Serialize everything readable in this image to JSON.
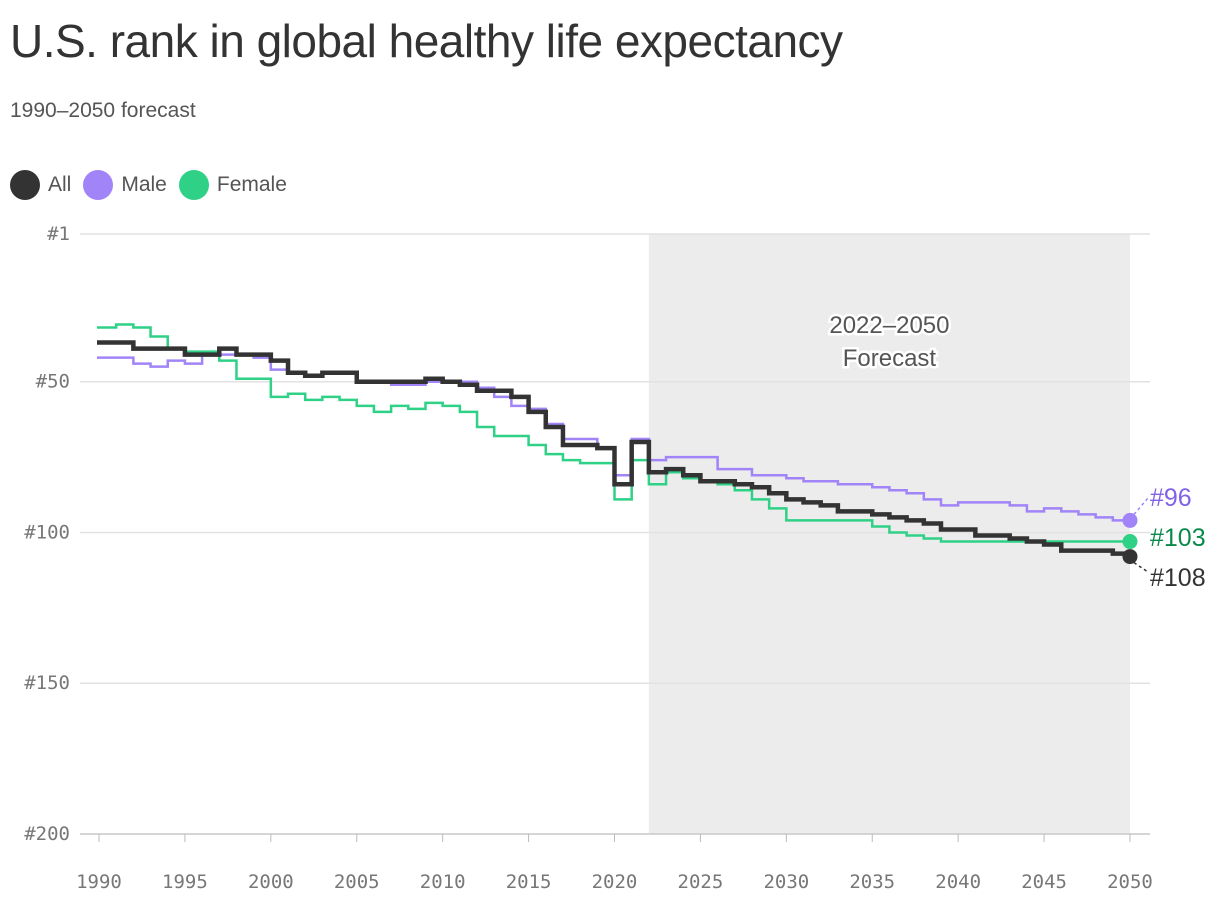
{
  "title": "U.S. rank in global healthy life expectancy",
  "subtitle": "1990–2050 forecast",
  "chart_data": {
    "type": "line",
    "step": true,
    "title": "U.S. rank in global healthy life expectancy",
    "subtitle": "1990–2050 forecast",
    "x": [
      1990,
      1991,
      1992,
      1993,
      1994,
      1995,
      1996,
      1997,
      1998,
      1999,
      2000,
      2001,
      2002,
      2003,
      2004,
      2005,
      2006,
      2007,
      2008,
      2009,
      2010,
      2011,
      2012,
      2013,
      2014,
      2015,
      2016,
      2017,
      2018,
      2019,
      2020,
      2021,
      2022,
      2023,
      2024,
      2025,
      2026,
      2027,
      2028,
      2029,
      2030,
      2031,
      2032,
      2033,
      2034,
      2035,
      2036,
      2037,
      2038,
      2039,
      2040,
      2041,
      2042,
      2043,
      2044,
      2045,
      2046,
      2047,
      2048,
      2049,
      2050
    ],
    "series": [
      {
        "name": "Female",
        "color": "#2fd186",
        "values": [
          32,
          31,
          32,
          35,
          39,
          40,
          40,
          43,
          49,
          49,
          55,
          54,
          56,
          55,
          56,
          58,
          60,
          58,
          59,
          57,
          58,
          60,
          65,
          68,
          68,
          71,
          74,
          76,
          77,
          77,
          89,
          76,
          84,
          80,
          82,
          83,
          84,
          86,
          89,
          92,
          96,
          96,
          96,
          96,
          96,
          98,
          100,
          101,
          102,
          103,
          103,
          103,
          103,
          103,
          103,
          103,
          103,
          103,
          103,
          103,
          103
        ],
        "end_label": "#103",
        "label_color": "#0a8a4a"
      },
      {
        "name": "Male",
        "color": "#a084f8",
        "values": [
          42,
          42,
          44,
          45,
          43,
          44,
          41,
          41,
          41,
          42,
          46,
          47,
          48,
          47,
          47,
          50,
          50,
          51,
          51,
          50,
          50,
          50,
          52,
          55,
          58,
          59,
          64,
          69,
          69,
          72,
          81,
          69,
          76,
          75,
          75,
          75,
          79,
          79,
          81,
          81,
          82,
          83,
          83,
          84,
          84,
          85,
          86,
          87,
          89,
          91,
          90,
          90,
          90,
          91,
          93,
          92,
          93,
          94,
          95,
          96,
          96
        ],
        "end_label": "#96",
        "label_color": "#8062e8"
      },
      {
        "name": "All",
        "color": "#333333",
        "values": [
          37,
          37,
          39,
          39,
          39,
          41,
          41,
          39,
          41,
          41,
          43,
          47,
          48,
          47,
          47,
          50,
          50,
          50,
          50,
          49,
          50,
          51,
          53,
          53,
          55,
          60,
          65,
          71,
          71,
          72,
          84,
          70,
          80,
          79,
          81,
          83,
          83,
          84,
          85,
          87,
          89,
          90,
          91,
          93,
          93,
          94,
          95,
          96,
          97,
          99,
          99,
          101,
          101,
          102,
          103,
          104,
          106,
          106,
          106,
          107,
          108
        ],
        "end_label": "#108",
        "label_color": "#333333"
      }
    ],
    "legend": [
      "All",
      "Male",
      "Female"
    ],
    "legend_placement": "top-left",
    "y_ticks": [
      "#1",
      "#50",
      "#100",
      "#150",
      "#200"
    ],
    "y_tick_values": [
      1,
      50,
      100,
      150,
      200
    ],
    "ylim": [
      1,
      200
    ],
    "y_reversed": true,
    "x_ticks": [
      1990,
      1995,
      2000,
      2005,
      2010,
      2015,
      2020,
      2025,
      2030,
      2035,
      2040,
      2045,
      2050
    ],
    "xlim": [
      1990,
      2050
    ],
    "grid": "horizontal",
    "forecast_region": {
      "start": 2022,
      "end": 2050,
      "label_line1": "2022–2050",
      "label_line2": "Forecast",
      "color": "#ececec"
    }
  }
}
